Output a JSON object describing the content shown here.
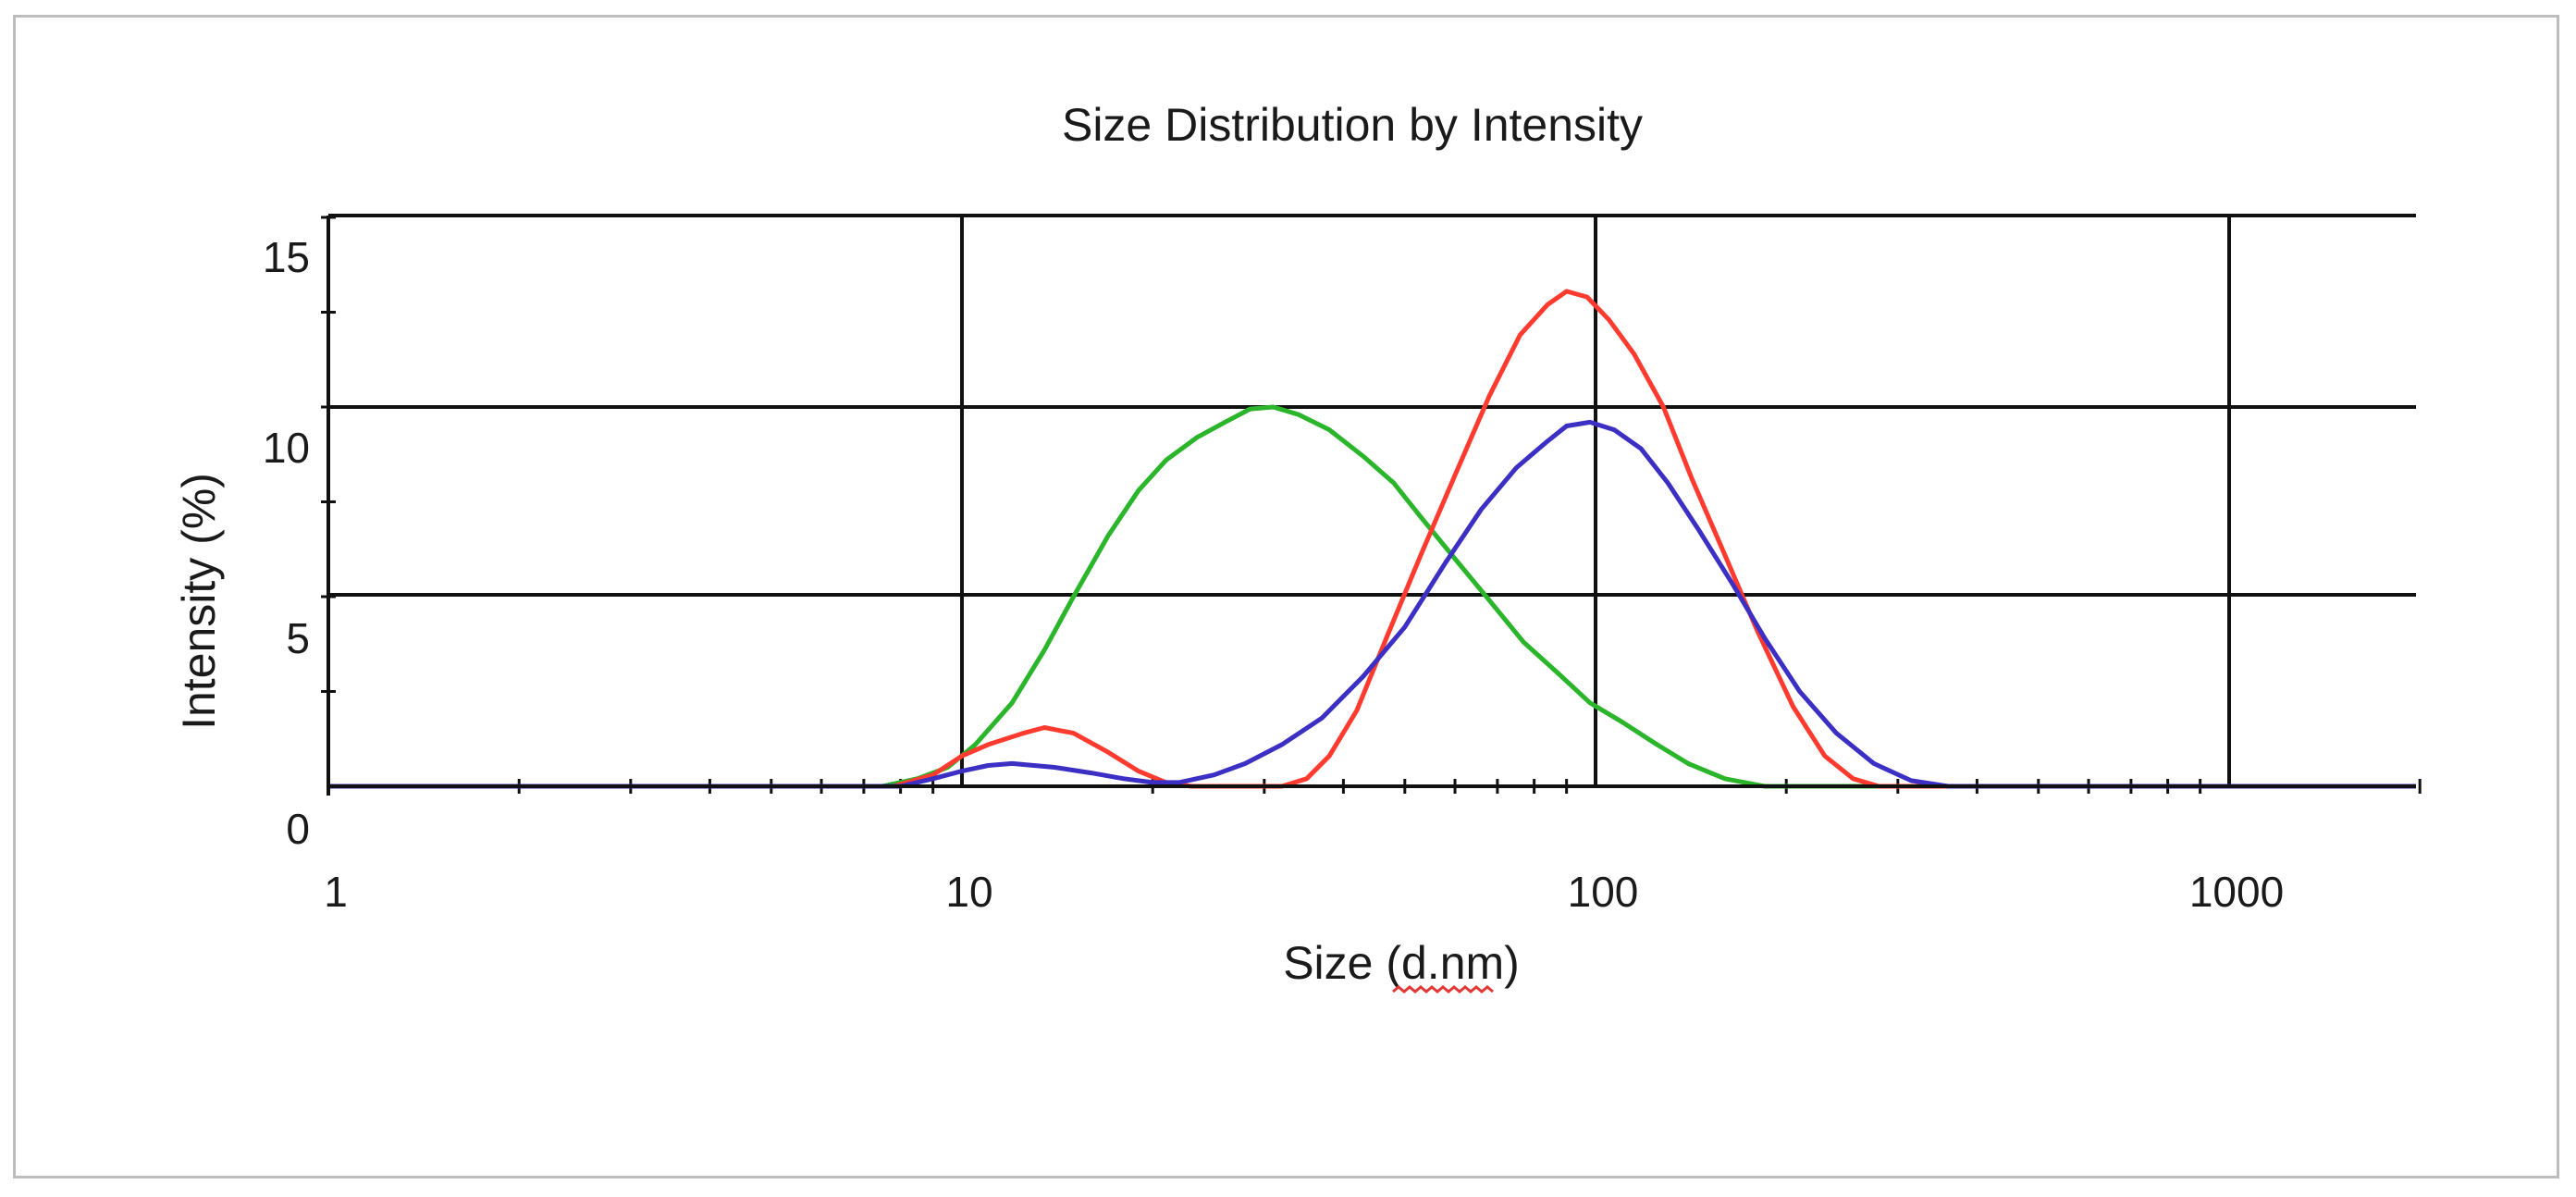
{
  "chart_data": {
    "type": "line",
    "title": "Size Distribution by Intensity",
    "xlabel": "Size (d.nm)",
    "ylabel": "Intensity (%)",
    "x_scale": "log",
    "xlim": [
      1,
      2000
    ],
    "ylim": [
      0,
      15
    ],
    "x_ticks": [
      {
        "value": 1,
        "label": "1"
      },
      {
        "value": 10,
        "label": "10"
      },
      {
        "value": 100,
        "label": "100"
      },
      {
        "value": 1000,
        "label": "1000"
      }
    ],
    "y_ticks": [
      {
        "value": 0,
        "label": "0"
      },
      {
        "value": 5,
        "label": "5"
      },
      {
        "value": 10,
        "label": "10"
      },
      {
        "value": 15,
        "label": "15"
      }
    ],
    "grid": true,
    "legend": "none",
    "series": [
      {
        "color": "#2ab52a",
        "points": [
          [
            1,
            0
          ],
          [
            7.5,
            0
          ],
          [
            8.5,
            0.2
          ],
          [
            9.5,
            0.5
          ],
          [
            10.5,
            1.1
          ],
          [
            12,
            2.2
          ],
          [
            13.5,
            3.6
          ],
          [
            15,
            5.0
          ],
          [
            17,
            6.6
          ],
          [
            19,
            7.8
          ],
          [
            21,
            8.6
          ],
          [
            23.5,
            9.2
          ],
          [
            26,
            9.6
          ],
          [
            28.5,
            9.95
          ],
          [
            31,
            10.0
          ],
          [
            34,
            9.8
          ],
          [
            38,
            9.4
          ],
          [
            43,
            8.7
          ],
          [
            48,
            8.0
          ],
          [
            53,
            7.1
          ],
          [
            60,
            6.0
          ],
          [
            68,
            4.9
          ],
          [
            77,
            3.8
          ],
          [
            87,
            3.0
          ],
          [
            98,
            2.2
          ],
          [
            110,
            1.7
          ],
          [
            125,
            1.1
          ],
          [
            140,
            0.6
          ],
          [
            160,
            0.2
          ],
          [
            185,
            0
          ],
          [
            2000,
            0
          ]
        ]
      },
      {
        "color": "#ff3b30",
        "points": [
          [
            1,
            0
          ],
          [
            7.8,
            0
          ],
          [
            9,
            0.3
          ],
          [
            10,
            0.8
          ],
          [
            11,
            1.1
          ],
          [
            12.5,
            1.4
          ],
          [
            13.5,
            1.55
          ],
          [
            15,
            1.4
          ],
          [
            17,
            0.9
          ],
          [
            19,
            0.4
          ],
          [
            21,
            0.1
          ],
          [
            23,
            0
          ],
          [
            32,
            0
          ],
          [
            35,
            0.2
          ],
          [
            38,
            0.8
          ],
          [
            42,
            2.0
          ],
          [
            47,
            4.0
          ],
          [
            53,
            6.1
          ],
          [
            60,
            8.2
          ],
          [
            68,
            10.3
          ],
          [
            76,
            11.9
          ],
          [
            84,
            12.7
          ],
          [
            90,
            13.05
          ],
          [
            97,
            12.9
          ],
          [
            105,
            12.3
          ],
          [
            115,
            11.4
          ],
          [
            128,
            10.0
          ],
          [
            142,
            8.1
          ],
          [
            160,
            6.1
          ],
          [
            180,
            4.1
          ],
          [
            205,
            2.1
          ],
          [
            230,
            0.8
          ],
          [
            255,
            0.2
          ],
          [
            280,
            0
          ],
          [
            2000,
            0
          ]
        ]
      },
      {
        "color": "#3b2fc4",
        "points": [
          [
            1,
            0
          ],
          [
            8,
            0
          ],
          [
            9,
            0.2
          ],
          [
            10,
            0.4
          ],
          [
            11,
            0.55
          ],
          [
            12,
            0.6
          ],
          [
            14,
            0.5
          ],
          [
            16,
            0.35
          ],
          [
            18,
            0.2
          ],
          [
            20,
            0.1
          ],
          [
            22,
            0.1
          ],
          [
            25,
            0.3
          ],
          [
            28,
            0.6
          ],
          [
            32,
            1.1
          ],
          [
            37,
            1.8
          ],
          [
            43,
            2.9
          ],
          [
            50,
            4.2
          ],
          [
            58,
            5.9
          ],
          [
            66,
            7.3
          ],
          [
            75,
            8.4
          ],
          [
            84,
            9.1
          ],
          [
            90,
            9.5
          ],
          [
            98,
            9.6
          ],
          [
            107,
            9.4
          ],
          [
            118,
            8.9
          ],
          [
            130,
            8.0
          ],
          [
            145,
            6.8
          ],
          [
            165,
            5.3
          ],
          [
            185,
            3.9
          ],
          [
            210,
            2.5
          ],
          [
            240,
            1.4
          ],
          [
            275,
            0.6
          ],
          [
            315,
            0.15
          ],
          [
            360,
            0
          ],
          [
            2000,
            0
          ]
        ]
      }
    ]
  }
}
